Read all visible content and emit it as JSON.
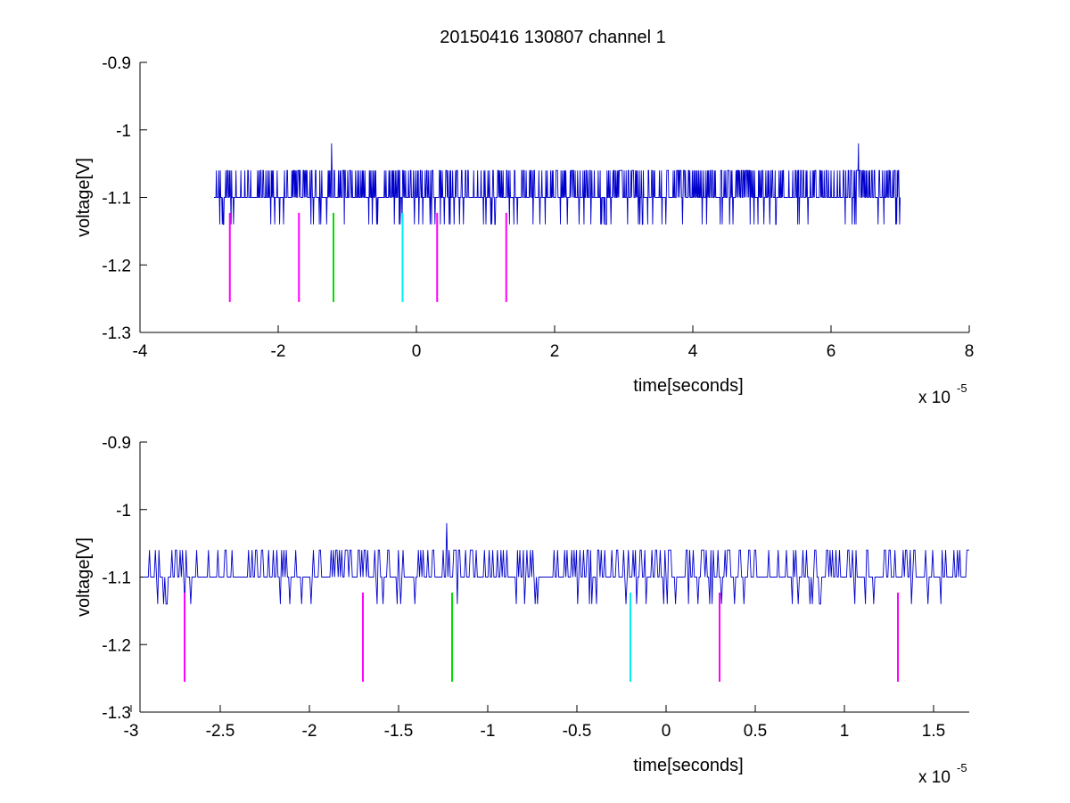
{
  "title": "20150416 130807 channel 1",
  "colors": {
    "signal": "#0000cc",
    "marker_magenta": "#ff00ff",
    "marker_green": "#00dd00",
    "marker_cyan": "#00eeee",
    "axis": "#000000"
  },
  "chart_data": [
    {
      "type": "line",
      "title": "20150416 130807 channel 1",
      "xlabel": "time[seconds]",
      "ylabel": "voltage[V]",
      "x_exponent_label": "x 10",
      "x_exponent": "-5",
      "xlim": [
        -4,
        8
      ],
      "ylim": [
        -1.3,
        -0.9
      ],
      "xticks": [
        -4,
        -2,
        0,
        2,
        4,
        6,
        8
      ],
      "xtick_labels": [
        "-4",
        "-2",
        "0",
        "2",
        "4",
        "6",
        "8"
      ],
      "yticks": [
        -0.9,
        -1,
        -1.1,
        -1.2,
        -1.3
      ],
      "ytick_labels": [
        "-0.9",
        "-1",
        "-1.1",
        "-1.2",
        "-1.3"
      ],
      "series": [
        {
          "x_range": [
            -2.93,
            7.0
          ],
          "baseline": -1.1,
          "levels": [
            -1.06,
            -1.1,
            -1.14
          ],
          "spikes": [
            {
              "x": -1.23,
              "y": -1.02
            },
            {
              "x": 6.4,
              "y": -1.02
            }
          ]
        }
      ],
      "markers": [
        {
          "x": -2.7,
          "color": "magenta",
          "y_range": [
            -1.123,
            -1.255
          ]
        },
        {
          "x": -1.7,
          "color": "magenta",
          "y_range": [
            -1.123,
            -1.255
          ]
        },
        {
          "x": -1.2,
          "color": "green",
          "y_range": [
            -1.123,
            -1.255
          ]
        },
        {
          "x": -0.2,
          "color": "cyan",
          "y_range": [
            -1.123,
            -1.255
          ]
        },
        {
          "x": 0.3,
          "color": "magenta",
          "y_range": [
            -1.123,
            -1.255
          ]
        },
        {
          "x": 1.3,
          "color": "magenta",
          "y_range": [
            -1.123,
            -1.255
          ]
        }
      ]
    },
    {
      "type": "line",
      "xlabel": "time[seconds]",
      "ylabel": "voltage[V]",
      "x_exponent_label": "x 10",
      "x_exponent": "-5",
      "xlim": [
        -2.95,
        1.7
      ],
      "ylim": [
        -1.3,
        -0.9
      ],
      "xticks": [
        -3,
        -2.5,
        -2,
        -1.5,
        -1,
        -0.5,
        0,
        0.5,
        1,
        1.5
      ],
      "xtick_labels": [
        "-3",
        "-2.5",
        "-2",
        "-1.5",
        "-1",
        "-0.5",
        "0",
        "0.5",
        "1",
        "1.5"
      ],
      "yticks": [
        -0.9,
        -1,
        -1.1,
        -1.2,
        -1.3
      ],
      "ytick_labels": [
        "-0.9",
        "-1",
        "-1.1",
        "-1.2",
        "-1.3"
      ],
      "series": [
        {
          "x_range": [
            -2.93,
            1.7
          ],
          "baseline": -1.1,
          "levels": [
            -1.06,
            -1.1,
            -1.14
          ],
          "spikes": [
            {
              "x": -1.23,
              "y": -1.02
            }
          ]
        }
      ],
      "markers": [
        {
          "x": -2.7,
          "color": "magenta",
          "y_range": [
            -1.123,
            -1.255
          ]
        },
        {
          "x": -1.7,
          "color": "magenta",
          "y_range": [
            -1.123,
            -1.255
          ]
        },
        {
          "x": -1.2,
          "color": "green",
          "y_range": [
            -1.123,
            -1.255
          ]
        },
        {
          "x": -0.2,
          "color": "cyan",
          "y_range": [
            -1.123,
            -1.255
          ]
        },
        {
          "x": 0.3,
          "color": "magenta",
          "y_range": [
            -1.123,
            -1.255
          ]
        },
        {
          "x": 1.3,
          "color": "magenta",
          "y_range": [
            -1.123,
            -1.255
          ]
        }
      ]
    }
  ]
}
